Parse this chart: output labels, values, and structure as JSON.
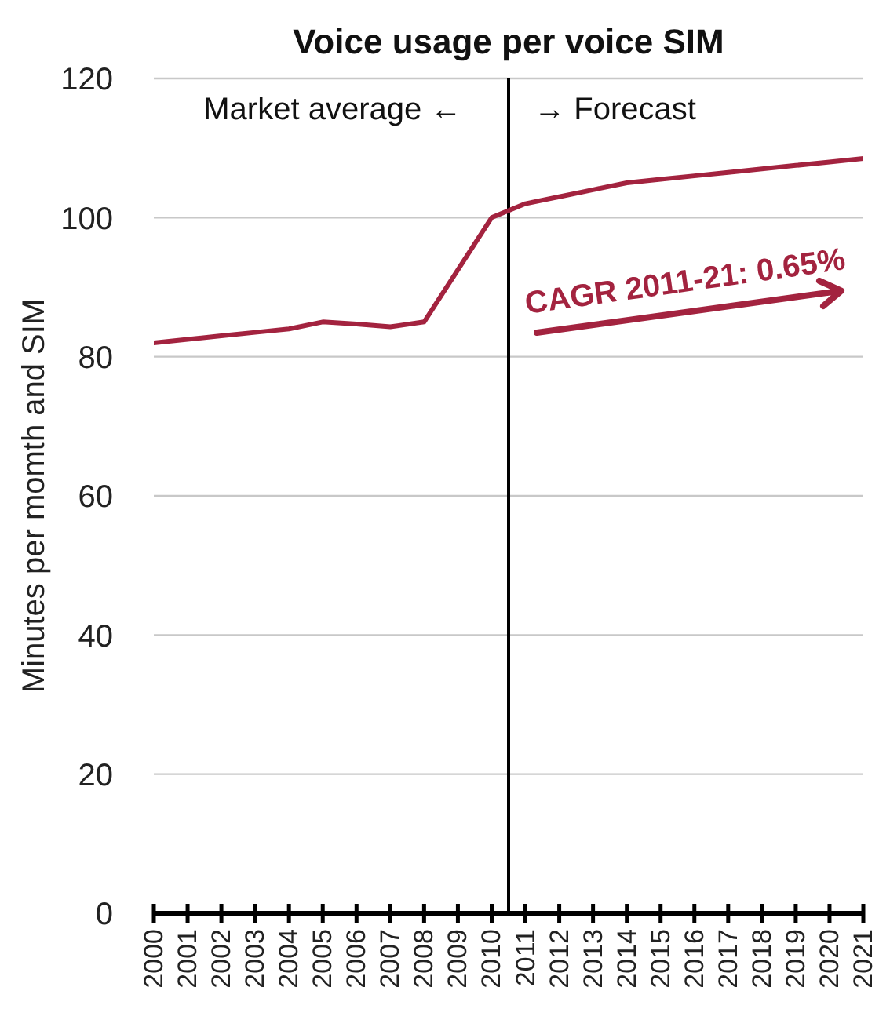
{
  "chart_data": {
    "type": "line",
    "title": "Voice usage per voice SIM",
    "ylabel": "Minutes per momth and SIM",
    "x": [
      2000,
      2001,
      2002,
      2003,
      2004,
      2005,
      2006,
      2007,
      2008,
      2009,
      2010,
      2011,
      2012,
      2013,
      2014,
      2015,
      2016,
      2017,
      2018,
      2019,
      2020,
      2021
    ],
    "series": [
      {
        "color": "#a3233f",
        "values": [
          82,
          82.5,
          83,
          83.5,
          84,
          85,
          84.7,
          84.3,
          85,
          92.5,
          100,
          102,
          103,
          104,
          105,
          105.5,
          106,
          106.5,
          107,
          107.5,
          108,
          108.5
        ]
      }
    ],
    "xlim": [
      2000,
      2021
    ],
    "xticks": [
      2000,
      2001,
      2002,
      2003,
      2004,
      2005,
      2006,
      2007,
      2008,
      2009,
      2010,
      2011,
      2012,
      2013,
      2014,
      2015,
      2016,
      2017,
      2018,
      2019,
      2020,
      2021
    ],
    "ylim": [
      0,
      120
    ],
    "yticks": [
      0,
      20,
      40,
      60,
      80,
      100,
      120
    ],
    "grid": "y",
    "ref_lines": [
      {
        "axis": "x",
        "value": 2010.5,
        "color": "#000000"
      }
    ],
    "annotations": [
      "Market average ←",
      "→ Forecast",
      "CAGR 2011-21: 0.65%"
    ]
  }
}
